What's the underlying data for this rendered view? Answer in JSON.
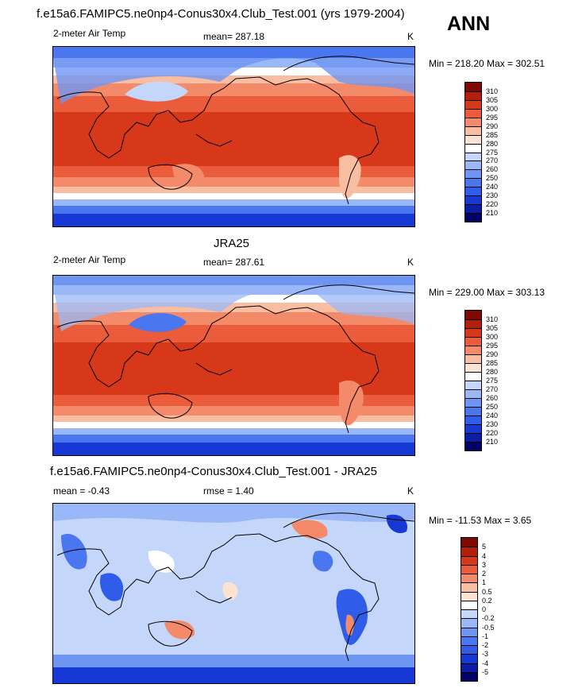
{
  "title": "f.e15a6.FAMIPC5.ne0np4-Conus30x4.Club_Test.001 (yrs 1979-2004)",
  "season": "ANN",
  "panels": [
    {
      "subtitle": "",
      "left": "2-meter Air Temp",
      "center": "mean= 287.18",
      "units": "K",
      "minmax": "Min = 218.20 Max = 302.51"
    },
    {
      "subtitle": "JRA25",
      "left": "2-meter Air Temp",
      "center": "mean= 287.61",
      "units": "K",
      "minmax": "Min = 229.00 Max = 303.13"
    },
    {
      "subtitle": "f.e15a6.FAMIPC5.ne0np4-Conus30x4.Club_Test.001 - JRA25",
      "left": "mean =  -0.43",
      "center": "rmse =   1.40",
      "units": "K",
      "minmax": "Min = -11.53 Max =   3.65"
    }
  ],
  "chart_data": [
    {
      "type": "heatmap",
      "title": "f.e15a6.FAMIPC5.ne0np4-Conus30x4.Club_Test.001 (yrs 1979-2004)",
      "variable": "2-meter Air Temp",
      "units": "K",
      "mean": 287.18,
      "min": 218.2,
      "max": 302.51,
      "colorbar_levels": [
        210,
        220,
        230,
        240,
        250,
        260,
        270,
        275,
        280,
        285,
        290,
        295,
        300,
        305,
        310
      ],
      "colorbar_colors": [
        "#030066",
        "#0a1da3",
        "#1639d6",
        "#2f5ce8",
        "#4a76ef",
        "#6f95f3",
        "#9ab8f7",
        "#c4d6fa",
        "#ffffff",
        "#fde2d2",
        "#f9bda2",
        "#f38b6b",
        "#ea5c3b",
        "#d8381a",
        "#b41f0c",
        "#7d0a04"
      ],
      "grid": false
    },
    {
      "type": "heatmap",
      "title": "JRA25",
      "variable": "2-meter Air Temp",
      "units": "K",
      "mean": 287.61,
      "min": 229.0,
      "max": 303.13,
      "colorbar_levels": [
        210,
        220,
        230,
        240,
        250,
        260,
        270,
        275,
        280,
        285,
        290,
        295,
        300,
        305,
        310
      ],
      "colorbar_colors": [
        "#030066",
        "#0a1da3",
        "#1639d6",
        "#2f5ce8",
        "#4a76ef",
        "#6f95f3",
        "#9ab8f7",
        "#c4d6fa",
        "#ffffff",
        "#fde2d2",
        "#f9bda2",
        "#f38b6b",
        "#ea5c3b",
        "#d8381a",
        "#b41f0c",
        "#7d0a04"
      ],
      "grid": false
    },
    {
      "type": "heatmap",
      "title": "f.e15a6.FAMIPC5.ne0np4-Conus30x4.Club_Test.001 - JRA25",
      "units": "K",
      "mean": -0.43,
      "rmse": 1.4,
      "min": -11.53,
      "max": 3.65,
      "colorbar_levels": [
        -5,
        -4,
        -3,
        -2,
        -1,
        -0.5,
        -0.2,
        0,
        0.2,
        0.5,
        1,
        2,
        3,
        4,
        5
      ],
      "colorbar_colors": [
        "#030066",
        "#0a1da3",
        "#1639d6",
        "#2f5ce8",
        "#4a76ef",
        "#6f95f3",
        "#9ab8f7",
        "#c4d6fa",
        "#ffffff",
        "#fde2d2",
        "#f9bda2",
        "#f38b6b",
        "#ea5c3b",
        "#d8381a",
        "#b41f0c",
        "#7d0a04"
      ],
      "grid": false
    }
  ]
}
